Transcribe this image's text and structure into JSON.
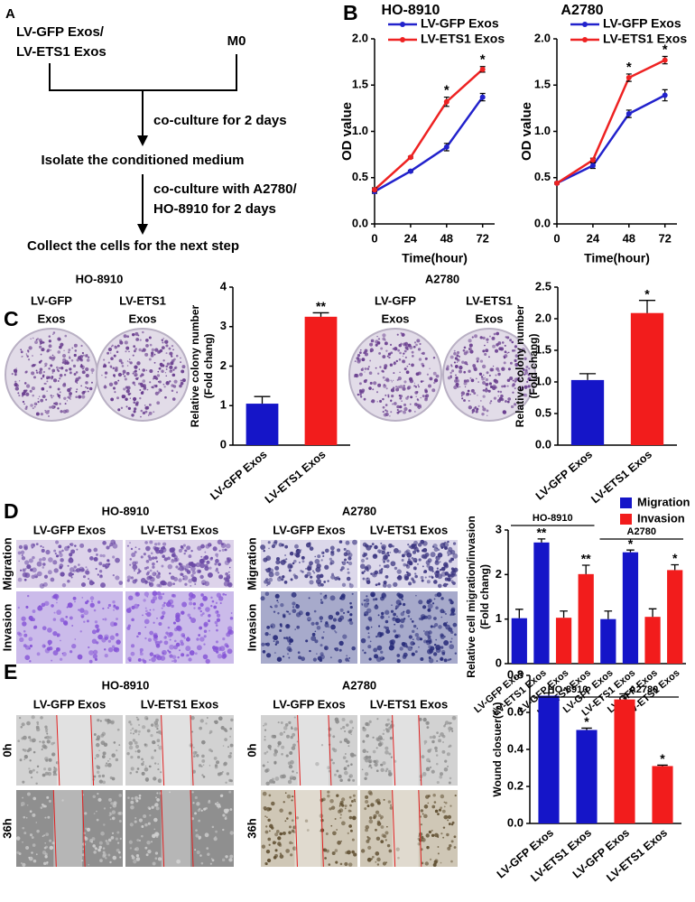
{
  "panel_labels": [
    "A",
    "B",
    "C",
    "D",
    "E"
  ],
  "flowchart": {
    "source_lines": [
      "LV-GFP Exos/",
      "LV-ETS1 Exos"
    ],
    "target": "M0",
    "step1": "co-culture for 2 days",
    "node1": "Isolate the conditioned medium",
    "step2_lines": [
      "co-culture with A2780/",
      "HO-8910 for 2 days"
    ],
    "node2": "Collect the cells for the next step"
  },
  "colony_images": {
    "panels": [
      {
        "title": "HO-8910",
        "columns": [
          [
            "LV-GFP",
            "Exos"
          ],
          [
            "LV-ETS1",
            "Exos"
          ]
        ]
      },
      {
        "title": "A2780",
        "columns": [
          [
            "LV-GFP",
            "Exos"
          ],
          [
            "LV-ETS1",
            "Exos"
          ]
        ]
      }
    ]
  },
  "transwell_images": {
    "rows": [
      "Migration",
      "Invasion"
    ],
    "panels": [
      {
        "title": "HO-8910",
        "columns": [
          "LV-GFP Exos",
          "LV-ETS1 Exos"
        ]
      },
      {
        "title": "A2780",
        "columns": [
          "LV-GFP Exos",
          "LV-ETS1 Exos"
        ]
      }
    ]
  },
  "wound_images": {
    "rows": [
      "0h",
      "36h"
    ],
    "panels": [
      {
        "title": "HO-8910",
        "columns": [
          "LV-GFP Exos",
          "LV-ETS1 Exos"
        ]
      },
      {
        "title": "A2780",
        "columns": [
          "LV-GFP Exos",
          "LV-ETS1 Exos"
        ]
      }
    ]
  },
  "chart_data": [
    {
      "type": "line",
      "title": "HO-8910",
      "xlabel": "Time(hour)",
      "ylabel": "OD value",
      "x": [
        0,
        24,
        48,
        72
      ],
      "xlim": [
        0,
        80
      ],
      "xticks": [
        0,
        24,
        48,
        72
      ],
      "ylim": [
        0,
        2
      ],
      "yticks": [
        {
          "value": 0,
          "label": "0.0"
        },
        0.5,
        {
          "value": 1,
          "label": "1.0"
        },
        1.5,
        {
          "value": 2,
          "label": "2.0"
        }
      ],
      "legend": "top-right",
      "series": [
        {
          "name": "LV-GFP Exos",
          "color": "#2222cc",
          "values": [
            0.35,
            0.57,
            0.83,
            1.37
          ],
          "errors": [
            0.02,
            0.01,
            0.04,
            0.04
          ]
        },
        {
          "name": "LV-ETS1 Exos",
          "color": "#ee2222",
          "values": [
            0.37,
            0.72,
            1.32,
            1.67
          ],
          "errors": [
            0.02,
            0.01,
            0.05,
            0.03
          ]
        }
      ],
      "annotations": [
        {
          "x": 48,
          "text": "*"
        },
        {
          "x": 72,
          "text": "*"
        }
      ]
    },
    {
      "type": "line",
      "title": "A2780",
      "xlabel": "Time(hour)",
      "ylabel": "OD value",
      "x": [
        0,
        24,
        48,
        72
      ],
      "xlim": [
        0,
        80
      ],
      "xticks": [
        0,
        24,
        48,
        72
      ],
      "ylim": [
        0,
        2
      ],
      "yticks": [
        {
          "value": 0,
          "label": "0.0"
        },
        0.5,
        {
          "value": 1,
          "label": "1.0"
        },
        1.5,
        {
          "value": 2,
          "label": "2.0"
        }
      ],
      "legend": "top-right",
      "series": [
        {
          "name": "LV-GFP Exos",
          "color": "#2222cc",
          "values": [
            0.44,
            0.63,
            1.19,
            1.39
          ],
          "errors": [
            0.01,
            0.03,
            0.04,
            0.06
          ]
        },
        {
          "name": "LV-ETS1 Exos",
          "color": "#ee2222",
          "values": [
            0.44,
            0.69,
            1.58,
            1.77
          ],
          "errors": [
            0.01,
            0.02,
            0.04,
            0.04
          ]
        }
      ],
      "annotations": [
        {
          "x": 48,
          "text": "*"
        },
        {
          "x": 72,
          "text": "*"
        }
      ]
    },
    {
      "type": "bar",
      "ylabel": [
        "Relative colony number",
        "(Fold chang)"
      ],
      "categories": [
        "LV-GFP Exos",
        "LV-ETS1 Exos"
      ],
      "values": [
        1.05,
        3.25
      ],
      "errors": [
        0.18,
        0.1
      ],
      "colors": [
        "#1515c8",
        "#f21c1c"
      ],
      "ylim": [
        0,
        4
      ],
      "yticks": [
        0,
        1,
        2,
        3,
        4
      ],
      "annotations": [
        {
          "index": 1,
          "text": "**"
        }
      ]
    },
    {
      "type": "bar",
      "ylabel": [
        "Relative colony number",
        "(Fold chang)"
      ],
      "categories": [
        "LV-GFP Exos",
        "LV-ETS1 Exos"
      ],
      "values": [
        1.03,
        2.09
      ],
      "errors": [
        0.1,
        0.2
      ],
      "colors": [
        "#1515c8",
        "#f21c1c"
      ],
      "ylim": [
        0,
        2.5
      ],
      "yticks": [
        {
          "value": 0,
          "label": "0.0"
        },
        0.5,
        {
          "value": 1,
          "label": "1.0"
        },
        1.5,
        {
          "value": 2,
          "label": "2.0"
        },
        2.5
      ],
      "annotations": [
        {
          "index": 1,
          "text": "*"
        }
      ]
    },
    {
      "type": "bar",
      "ylabel": [
        "Relative cell migration/invasion",
        "(Fold chang)"
      ],
      "categories": [
        "LV-GFP Exos",
        "LV-ETS1 Exos",
        "LV-GFP Exos",
        "LV-ETS1 Exos",
        "LV-GFP Exos",
        "LV-ETS1 Exos",
        "LV-GFP Exos",
        "LV-ETS1 Exos"
      ],
      "legend": "top-right",
      "series": [
        {
          "name": "Migration",
          "color": "#1515c8",
          "values": [
            1.02,
            2.72,
            null,
            null,
            1.0,
            2.5,
            null,
            null
          ],
          "errors": [
            0.2,
            0.08,
            null,
            null,
            0.18,
            0.05,
            null,
            null
          ]
        },
        {
          "name": "Invasion",
          "color": "#f21c1c",
          "values": [
            null,
            null,
            1.03,
            2.01,
            null,
            null,
            1.05,
            2.1
          ],
          "errors": [
            null,
            null,
            0.15,
            0.2,
            null,
            null,
            0.18,
            0.12
          ]
        }
      ],
      "ylim": [
        0,
        3
      ],
      "yticks": [
        0,
        1,
        2,
        3
      ],
      "groups": [
        {
          "name": "HO-8910",
          "size": 4
        },
        {
          "name": "A2780",
          "size": 4
        }
      ],
      "annotations": [
        {
          "index": 1,
          "text": "**"
        },
        {
          "index": 3,
          "text": "**"
        },
        {
          "index": 5,
          "text": "*"
        },
        {
          "index": 7,
          "text": "*"
        }
      ]
    },
    {
      "type": "bar",
      "ylabel": "Wound closuer(%)",
      "categories": [
        "LV-GFP Exos",
        "LV-ETS1 Exos",
        "LV-GFP Exos",
        "LV-ETS1 Exos"
      ],
      "values": [
        0.69,
        0.505,
        0.67,
        0.31
      ],
      "errors": [
        0.015,
        0.01,
        0.03,
        0.005
      ],
      "colors": [
        "#1515c8",
        "#1515c8",
        "#f21c1c",
        "#f21c1c"
      ],
      "ylim": [
        0,
        0.8
      ],
      "yticks": [
        {
          "value": 0,
          "label": "0.0"
        },
        0.2,
        0.4,
        0.6,
        0.8
      ],
      "groups": [
        {
          "name": "HO-8910",
          "size": 2
        },
        {
          "name": "A2780",
          "size": 2
        }
      ],
      "annotations": [
        {
          "index": 1,
          "text": "*"
        },
        {
          "index": 3,
          "text": "*"
        }
      ]
    }
  ]
}
